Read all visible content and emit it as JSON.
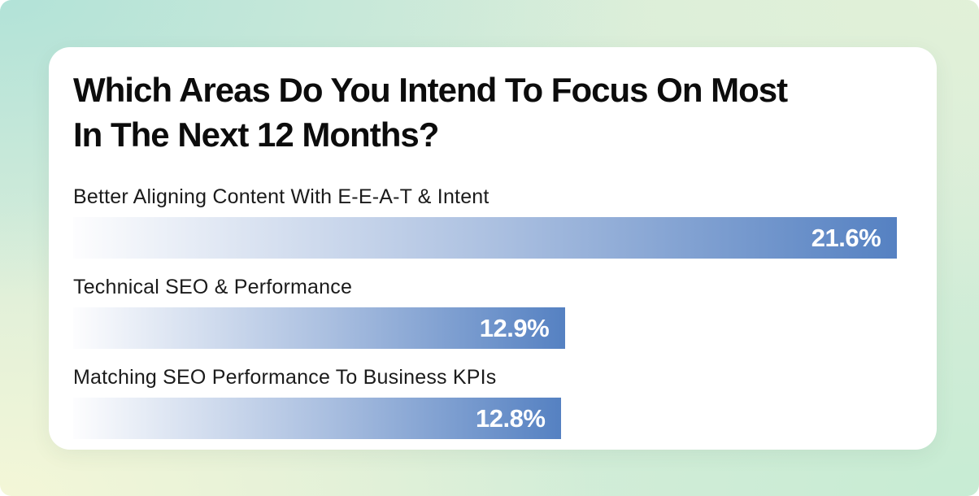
{
  "chart_data": {
    "type": "bar",
    "orientation": "horizontal",
    "title": "Which Areas Do You Intend To Focus On Most In The Next 12 Months?",
    "title_lines": [
      "Which Areas Do You Intend To Focus On Most",
      "In The Next 12 Months?"
    ],
    "categories": [
      "Better Aligning Content With E-E-A-T & Intent",
      "Technical SEO & Performance",
      "Matching SEO Performance To Business KPIs"
    ],
    "values": [
      21.6,
      12.9,
      12.8
    ],
    "value_labels": [
      "21.6%",
      "12.9%",
      "12.8%"
    ],
    "unit": "%",
    "xlim": [
      0,
      22
    ],
    "grid": false,
    "legend": false,
    "xlabel": "",
    "ylabel": "",
    "colors": {
      "bar_gradient_start": "#fdfdfe",
      "bar_gradient_mid": "#aabfe0",
      "bar_gradient_end": "#5581c2",
      "value_label": "#ffffff",
      "category_label": "#1b1b1b",
      "title": "#0c0c0c",
      "card_background": "#ffffff",
      "background_top_left": "#b0e2d8",
      "background_top_right": "#e2f1d8",
      "background_bottom_left": "#f5f7d7",
      "background_bottom_right": "#c6ecd3"
    }
  }
}
